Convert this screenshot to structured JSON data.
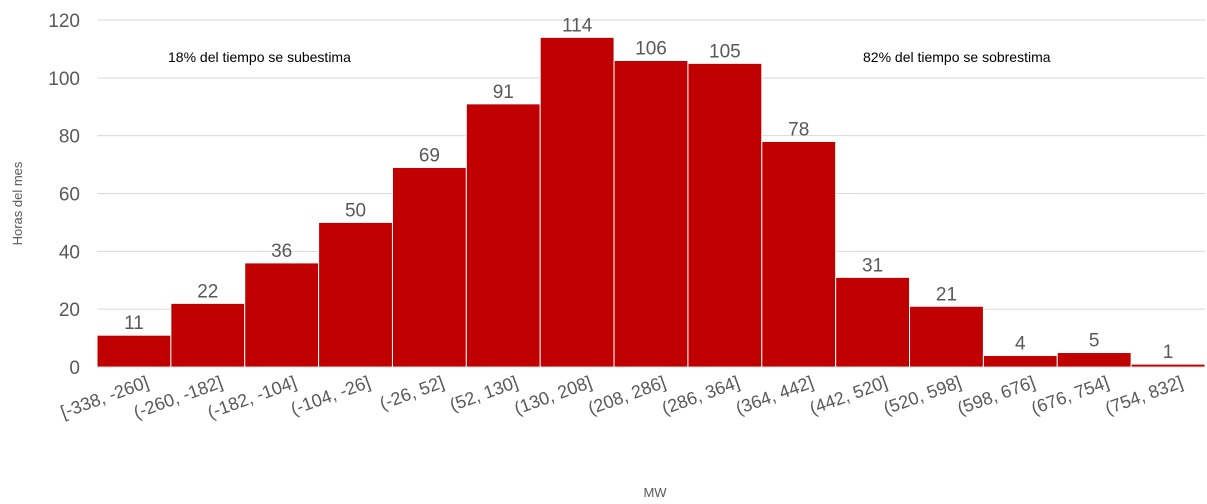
{
  "chart_data": {
    "type": "bar",
    "title": "",
    "xlabel": "MW",
    "ylabel": "Horas del mes",
    "categories": [
      "[-338, -260]",
      "(-260, -182]",
      "(-182, -104]",
      "(-104, -26]",
      "(-26, 52]",
      "(52, 130]",
      "(130, 208]",
      "(208, 286]",
      "(286, 364]",
      "(364, 442]",
      "(442, 520]",
      "(520, 598]",
      "(598, 676]",
      "(676, 754]",
      "(754, 832]"
    ],
    "values": [
      11,
      22,
      36,
      50,
      69,
      91,
      114,
      106,
      105,
      78,
      31,
      21,
      4,
      5,
      1
    ],
    "ylim": [
      0,
      120
    ],
    "yticks": [
      0,
      20,
      40,
      60,
      80,
      100,
      120
    ],
    "grid": true,
    "bar_color": "#C00000",
    "annotations": [
      "18% del tiempo se subestima",
      "82% del tiempo se sobrestima"
    ]
  }
}
